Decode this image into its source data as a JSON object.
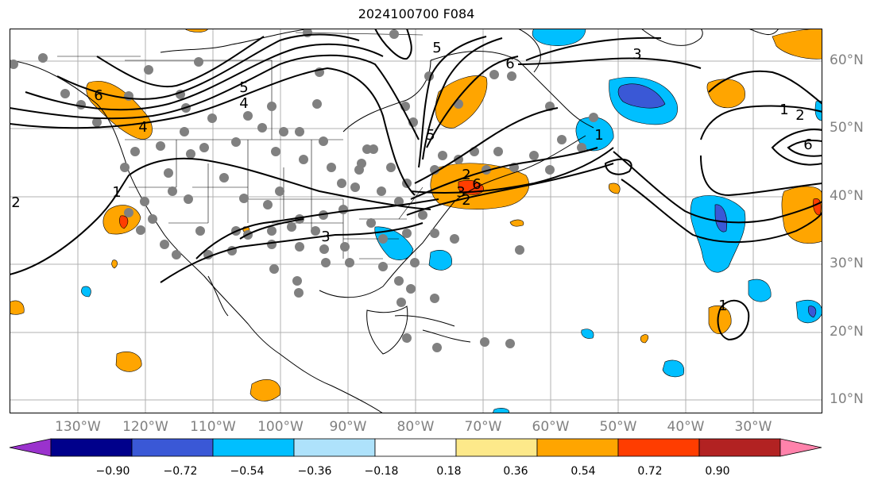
{
  "title": "2024100700 F084",
  "lat_labels": [
    "60°N",
    "50°N",
    "40°N",
    "30°N",
    "20°N",
    "10°N"
  ],
  "lon_labels": [
    "130°W",
    "120°W",
    "110°W",
    "100°W",
    "90°W",
    "80°W",
    "70°W",
    "60°W",
    "50°W",
    "40°W",
    "30°W"
  ],
  "contour_labels": [
    "6",
    "5",
    "4",
    "3",
    "2",
    "1",
    "6",
    "5",
    "4",
    "3",
    "2",
    "1",
    "3",
    "5",
    "6",
    "1",
    "2",
    "6",
    "2",
    "1"
  ],
  "colorbar": {
    "ticks": [
      "−0.90",
      "−0.72",
      "−0.54",
      "−0.36",
      "−0.18",
      "0.18",
      "0.36",
      "0.54",
      "0.72",
      "0.90"
    ],
    "colors": [
      "#9a32cd",
      "#00008b",
      "#3a58d6",
      "#00bfff",
      "#aee2fb",
      "#ffffff",
      "#fde98a",
      "#ffa500",
      "#ff3d00",
      "#b22222",
      "#ff82ab"
    ]
  },
  "colors": {
    "positive_mid": "#ffa500",
    "positive_high": "#ff3d00",
    "negative_mid": "#00bfff",
    "negative_high": "#3a58d6",
    "station": "#808080",
    "contour": "#000000",
    "grid": "#b0b0b0"
  }
}
